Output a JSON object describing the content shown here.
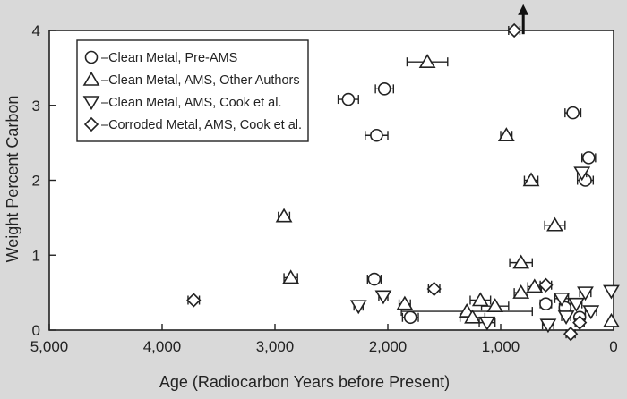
{
  "chart_data": {
    "type": "scatter",
    "title": "",
    "xlabel": "Age (Radiocarbon Years before Present)",
    "ylabel": "Weight Percent Carbon",
    "xlim": [
      5000,
      0
    ],
    "ylim": [
      0,
      4
    ],
    "x_ticks": [
      5000,
      4000,
      3000,
      2000,
      1000,
      0
    ],
    "x_tick_labels": [
      "5,000",
      "4,000",
      "3,000",
      "2,000",
      "1,000",
      "0"
    ],
    "y_ticks": [
      0,
      1,
      2,
      3,
      4
    ],
    "y_tick_labels": [
      "0",
      "1",
      "2",
      "3",
      "4"
    ],
    "grid": false,
    "legend_position": "top-left",
    "colors": {
      "background": "#d9d9d9",
      "plot_area": "#ffffff",
      "marker": "#222222"
    },
    "series": [
      {
        "name": "Clean Metal, Pre-AMS",
        "marker": "circle",
        "points": [
          {
            "x": 2350,
            "y": 3.08,
            "xerr": 90
          },
          {
            "x": 2030,
            "y": 3.22,
            "xerr": 80
          },
          {
            "x": 2100,
            "y": 2.6,
            "xerr": 100
          },
          {
            "x": 2120,
            "y": 0.68,
            "xerr": 60
          },
          {
            "x": 1800,
            "y": 0.17,
            "xerr": 70
          },
          {
            "x": 360,
            "y": 2.9,
            "xerr": 70
          },
          {
            "x": 220,
            "y": 2.3,
            "xerr": 60
          },
          {
            "x": 250,
            "y": 2.0,
            "xerr": 70
          },
          {
            "x": 600,
            "y": 0.35,
            "xerr": 50
          },
          {
            "x": 430,
            "y": 0.3,
            "xerr": 50
          },
          {
            "x": 300,
            "y": 0.17,
            "xerr": 40
          }
        ]
      },
      {
        "name": "Clean Metal, AMS, Other Authors",
        "marker": "triangle-up",
        "points": [
          {
            "x": 1650,
            "y": 3.58,
            "xerr": 180
          },
          {
            "x": 950,
            "y": 2.6,
            "xerr": 50
          },
          {
            "x": 730,
            "y": 2.0,
            "xerr": 60
          },
          {
            "x": 520,
            "y": 1.4,
            "xerr": 90
          },
          {
            "x": 2920,
            "y": 1.52,
            "xerr": 50
          },
          {
            "x": 2860,
            "y": 0.7,
            "xerr": 60
          },
          {
            "x": 820,
            "y": 0.9,
            "xerr": 100
          },
          {
            "x": 1300,
            "y": 0.25,
            "xerr": 580
          },
          {
            "x": 1250,
            "y": 0.17,
            "xerr": 110
          },
          {
            "x": 1050,
            "y": 0.32,
            "xerr": 120
          },
          {
            "x": 1180,
            "y": 0.4,
            "xerr": 90
          },
          {
            "x": 820,
            "y": 0.5,
            "xerr": 60
          },
          {
            "x": 700,
            "y": 0.58,
            "xerr": 60
          },
          {
            "x": 1850,
            "y": 0.35,
            "xerr": 50
          },
          {
            "x": 20,
            "y": 0.12,
            "xerr": 0
          }
        ]
      },
      {
        "name": "Clean Metal, AMS, Cook et al.",
        "marker": "triangle-down",
        "points": [
          {
            "x": 2260,
            "y": 0.32,
            "xerr": 40
          },
          {
            "x": 2040,
            "y": 0.45,
            "xerr": 40
          },
          {
            "x": 1120,
            "y": 0.1,
            "xerr": 70
          },
          {
            "x": 580,
            "y": 0.07,
            "xerr": 50
          },
          {
            "x": 460,
            "y": 0.42,
            "xerr": 60
          },
          {
            "x": 330,
            "y": 0.35,
            "xerr": 50
          },
          {
            "x": 250,
            "y": 0.5,
            "xerr": 50
          },
          {
            "x": 200,
            "y": 0.25,
            "xerr": 50
          },
          {
            "x": 420,
            "y": 0.18,
            "xerr": 40
          },
          {
            "x": 280,
            "y": 2.1,
            "xerr": 40
          },
          {
            "x": 20,
            "y": 0.52,
            "xerr": 0
          }
        ]
      },
      {
        "name": "Corroded Metal, AMS, Cook et al.",
        "marker": "diamond",
        "points": [
          {
            "x": 3720,
            "y": 0.4,
            "xerr": 50
          },
          {
            "x": 1590,
            "y": 0.55,
            "xerr": 50
          },
          {
            "x": 880,
            "y": 4.0,
            "xerr": 50
          },
          {
            "x": 600,
            "y": 0.6,
            "xerr": 50
          },
          {
            "x": 380,
            "y": -0.05,
            "xerr": 40
          },
          {
            "x": 300,
            "y": 0.1,
            "xerr": 40
          }
        ]
      }
    ],
    "annotations": [
      {
        "kind": "arrow-up",
        "x": 800,
        "y_from": 3.95,
        "y_to": 4.35
      }
    ]
  }
}
